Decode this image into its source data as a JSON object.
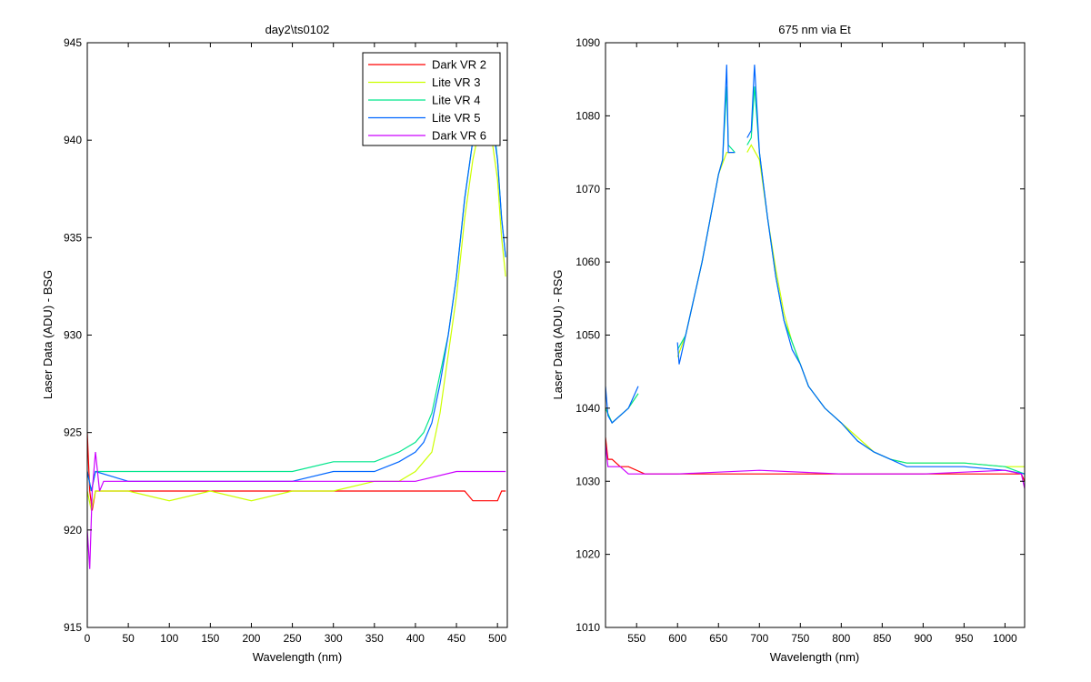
{
  "chart_data": [
    {
      "type": "line",
      "title": "day2\\ts0102",
      "xlabel": "Wavelength (nm)",
      "ylabel": "Laser Data (ADU) - BSG",
      "xlim": [
        0,
        512
      ],
      "ylim": [
        915,
        945
      ],
      "xticks": [
        0,
        50,
        100,
        150,
        200,
        250,
        300,
        350,
        400,
        450,
        500
      ],
      "yticks": [
        915,
        920,
        925,
        930,
        935,
        940,
        945
      ],
      "grid": false,
      "legend_position": "top-right",
      "series": [
        {
          "name": "Dark VR 2",
          "color": "#ff0000",
          "x": [
            0,
            3,
            6,
            10,
            20,
            50,
            100,
            150,
            200,
            250,
            300,
            350,
            400,
            450,
            460,
            470,
            480,
            490,
            500,
            505,
            510
          ],
          "y": [
            925,
            922,
            921,
            922,
            922,
            922,
            922,
            922,
            922,
            922,
            922,
            922,
            922,
            922,
            922,
            921.5,
            921.5,
            921.5,
            921.5,
            922,
            922
          ]
        },
        {
          "name": "Lite VR 3",
          "color": "#ccff00",
          "x": [
            0,
            5,
            10,
            50,
            100,
            150,
            200,
            250,
            300,
            350,
            380,
            400,
            410,
            420,
            430,
            440,
            450,
            460,
            470,
            480,
            490,
            500,
            505,
            510
          ],
          "y": [
            922,
            921,
            922,
            922,
            921.5,
            922,
            921.5,
            922,
            922,
            922.5,
            922.5,
            923,
            923.5,
            924,
            926,
            929,
            932,
            936,
            939,
            941,
            941,
            938,
            935,
            933
          ]
        },
        {
          "name": "Lite VR 4",
          "color": "#00e68c",
          "x": [
            0,
            5,
            10,
            50,
            100,
            150,
            200,
            250,
            300,
            350,
            380,
            400,
            410,
            420,
            430,
            440,
            450,
            460,
            470,
            480,
            485,
            490,
            500,
            505,
            510
          ],
          "y": [
            923,
            922,
            923,
            923,
            923,
            923,
            923,
            923,
            923.5,
            923.5,
            924,
            924.5,
            925,
            926,
            928,
            930,
            933,
            937,
            940,
            942,
            944,
            943,
            939,
            936,
            934
          ]
        },
        {
          "name": "Lite VR 5",
          "color": "#0066ff",
          "x": [
            0,
            5,
            10,
            50,
            100,
            150,
            200,
            250,
            300,
            350,
            380,
            400,
            410,
            420,
            430,
            440,
            450,
            460,
            470,
            480,
            485,
            490,
            500,
            505,
            510
          ],
          "y": [
            923,
            922,
            923,
            922.5,
            922.5,
            922.5,
            922.5,
            922.5,
            923,
            923,
            923.5,
            924,
            924.5,
            925.5,
            927.5,
            930,
            933,
            937,
            940,
            942,
            943,
            942,
            939,
            936,
            934
          ]
        },
        {
          "name": "Dark VR 6",
          "color": "#cc00ff",
          "x": [
            0,
            3,
            6,
            10,
            15,
            20,
            50,
            100,
            150,
            200,
            250,
            300,
            350,
            400,
            450,
            500,
            510
          ],
          "y": [
            920,
            918,
            922,
            924,
            922,
            922.5,
            922.5,
            922.5,
            922.5,
            922.5,
            922.5,
            922.5,
            922.5,
            922.5,
            923,
            923,
            923
          ]
        }
      ]
    },
    {
      "type": "line",
      "title": "675 nm via Et",
      "xlabel": "Wavelength (nm)",
      "ylabel": "Laser Data (ADU) - RSG",
      "xlim": [
        512,
        1024
      ],
      "ylim": [
        1010,
        1090
      ],
      "xticks": [
        550,
        600,
        650,
        700,
        750,
        800,
        850,
        900,
        950,
        1000
      ],
      "yticks": [
        1010,
        1020,
        1030,
        1040,
        1050,
        1060,
        1070,
        1080,
        1090
      ],
      "grid": false,
      "series": [
        {
          "name": "Dark VR 2",
          "color": "#ff0000",
          "x": [
            512,
            515,
            520,
            530,
            540,
            560,
            580,
            600,
            700,
            800,
            900,
            1000,
            1020,
            1024
          ],
          "y": [
            1036,
            1033,
            1033,
            1032,
            1032,
            1031,
            1031,
            1031,
            1031,
            1031,
            1031,
            1031,
            1031,
            1030
          ]
        },
        {
          "name": "Lite VR 3",
          "color": "#ccff00",
          "segments": [
            {
              "x": [
                512,
                520,
                530,
                540,
                552
              ],
              "y": [
                1040,
                1038,
                1039,
                1040,
                1042
              ]
            },
            {
              "x": [
                600,
                610,
                620,
                630,
                640,
                650,
                660,
                670
              ],
              "y": [
                1047,
                1050,
                1055,
                1060,
                1066,
                1072,
                1075,
                1075
              ]
            },
            {
              "x": [
                685,
                690,
                700,
                710,
                720,
                730,
                740,
                750,
                760,
                780,
                800,
                820,
                840,
                860,
                880,
                900,
                950,
                1000,
                1024
              ],
              "y": [
                1075,
                1076,
                1074,
                1066,
                1059,
                1053,
                1049,
                1046,
                1043,
                1040,
                1038,
                1036,
                1034,
                1033,
                1032.5,
                1032.5,
                1032.5,
                1032,
                1032
              ]
            }
          ]
        },
        {
          "name": "Lite VR 4",
          "color": "#00e68c",
          "segments": [
            {
              "x": [
                512,
                520,
                530,
                540,
                552
              ],
              "y": [
                1040,
                1038,
                1039,
                1040,
                1042
              ]
            },
            {
              "x": [
                600,
                610,
                620,
                630,
                640,
                650,
                655,
                660,
                662,
                670
              ],
              "y": [
                1048,
                1050,
                1055,
                1060,
                1066,
                1072,
                1074,
                1084,
                1076,
                1075
              ]
            },
            {
              "x": [
                685,
                690,
                694,
                700,
                710,
                720,
                730,
                740,
                750,
                760,
                780,
                800,
                820,
                840,
                860,
                880,
                900,
                950,
                1000,
                1024
              ],
              "y": [
                1076,
                1077,
                1084,
                1075,
                1066,
                1058,
                1052,
                1049,
                1046,
                1043,
                1040,
                1038,
                1035.5,
                1034,
                1033,
                1032.5,
                1032.5,
                1032.5,
                1032,
                1031
              ]
            }
          ]
        },
        {
          "name": "Lite VR 5",
          "color": "#0066ff",
          "segments": [
            {
              "x": [
                512,
                515,
                520,
                530,
                540,
                552
              ],
              "y": [
                1043,
                1039,
                1038,
                1039,
                1040,
                1043
              ]
            },
            {
              "x": [
                600,
                602,
                610,
                620,
                630,
                640,
                650,
                655,
                660,
                662,
                670
              ],
              "y": [
                1049,
                1046,
                1050,
                1055,
                1060,
                1066,
                1072,
                1074,
                1087,
                1075,
                1075
              ]
            },
            {
              "x": [
                685,
                690,
                694,
                700,
                710,
                720,
                730,
                740,
                750,
                760,
                780,
                800,
                820,
                840,
                860,
                880,
                900,
                950,
                1000,
                1024
              ],
              "y": [
                1077,
                1078,
                1087,
                1075,
                1066,
                1058,
                1052,
                1048,
                1046,
                1043,
                1040,
                1038,
                1035.5,
                1034,
                1033,
                1032,
                1032,
                1032,
                1031.5,
                1031
              ]
            }
          ]
        },
        {
          "name": "Dark VR 6",
          "color": "#cc00ff",
          "x": [
            512,
            515,
            520,
            530,
            540,
            560,
            580,
            600,
            700,
            800,
            900,
            1000,
            1020,
            1024
          ],
          "y": [
            1035,
            1032,
            1032,
            1032,
            1031,
            1031,
            1031,
            1031,
            1031.5,
            1031,
            1031,
            1031.5,
            1031,
            1029
          ]
        }
      ]
    }
  ]
}
